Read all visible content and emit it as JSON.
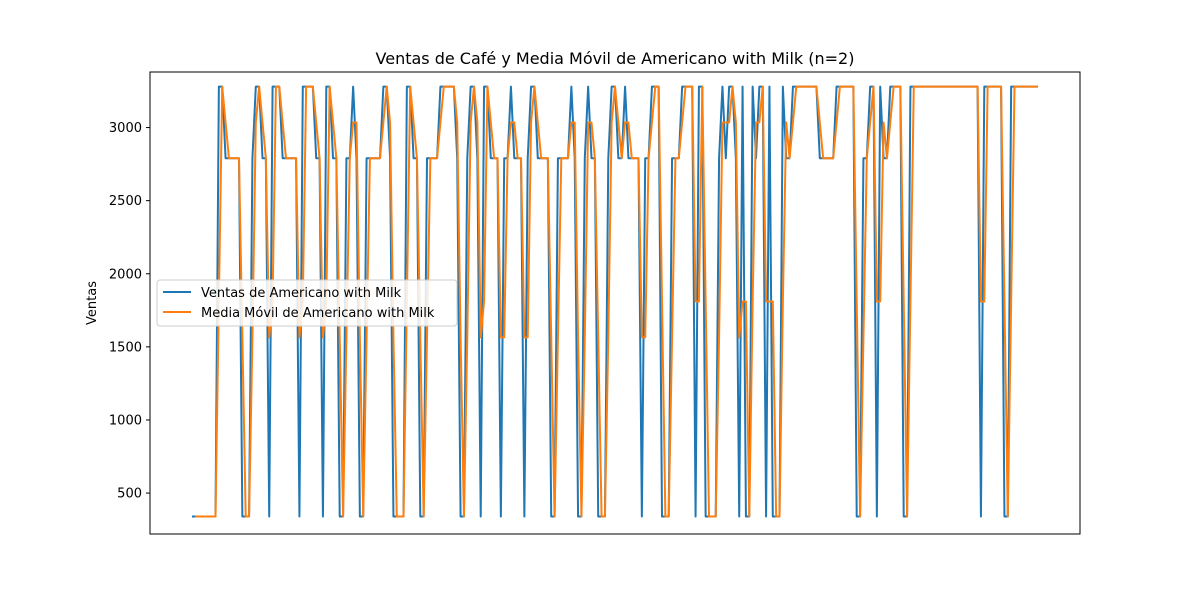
{
  "chart_data": {
    "type": "line",
    "title": "Ventas de Café y Media Móvil de Americano with Milk (n=2)",
    "xlabel": "",
    "ylabel": "Ventas",
    "ylim": [
      220,
      3380
    ],
    "yticks": [
      500,
      1000,
      1500,
      2000,
      2500,
      3000
    ],
    "grid": false,
    "legend_position": "center-left",
    "series": [
      {
        "name": "Ventas de Americano with Milk",
        "color": "#1f77b4",
        "values": [
          340,
          340,
          340,
          340,
          340,
          340,
          340,
          340,
          3280,
          3280,
          2790,
          2790,
          2790,
          2790,
          2790,
          340,
          340,
          340,
          2790,
          3280,
          3280,
          2790,
          2790,
          340,
          3280,
          3280,
          3280,
          2790,
          2790,
          2790,
          2790,
          2790,
          340,
          3280,
          3280,
          3280,
          3280,
          2790,
          2790,
          340,
          3280,
          3280,
          2790,
          2790,
          340,
          340,
          2790,
          2790,
          3280,
          2790,
          340,
          340,
          2790,
          2790,
          2790,
          2790,
          2790,
          3280,
          3280,
          2790,
          340,
          340,
          340,
          340,
          3280,
          3280,
          2790,
          2790,
          340,
          340,
          2790,
          2790,
          2790,
          2790,
          3280,
          3280,
          3280,
          3280,
          3280,
          2790,
          340,
          340,
          2790,
          3280,
          3280,
          2790,
          340,
          3280,
          3280,
          2790,
          2790,
          2790,
          340,
          2790,
          2790,
          3280,
          2790,
          2790,
          2790,
          340,
          2790,
          3280,
          3280,
          2790,
          2790,
          2790,
          2790,
          340,
          340,
          2790,
          2790,
          2790,
          2790,
          3280,
          2790,
          340,
          340,
          2790,
          3280,
          2790,
          2790,
          340,
          340,
          340,
          2790,
          3280,
          3280,
          2790,
          2790,
          3280,
          2790,
          2790,
          2790,
          2790,
          340,
          2790,
          2790,
          3280,
          3280,
          3280,
          340,
          340,
          340,
          2790,
          2790,
          2790,
          3280,
          3280,
          3280,
          3280,
          340,
          3280,
          3280,
          340,
          340,
          340,
          340,
          2790,
          3280,
          2790,
          3280,
          3280,
          2790,
          340,
          3280,
          340,
          340,
          3280,
          2790,
          3280,
          3280,
          340,
          3280,
          340,
          340,
          340,
          3280,
          2790,
          2790,
          3280,
          3280,
          3280,
          3280,
          3280,
          3280,
          3280,
          3280,
          2790,
          2790,
          2790,
          2790,
          2790,
          3280,
          3280,
          3280,
          3280,
          3280,
          3280,
          340,
          340,
          2790,
          2790,
          3280,
          3280,
          340,
          3280,
          2790,
          2790,
          3280,
          3280,
          3280,
          3280,
          340,
          340,
          3280,
          3280,
          3280,
          3280,
          3280,
          3280,
          3280,
          3280,
          3280,
          3280,
          3280,
          3280,
          3280,
          3280,
          3280,
          3280,
          3280,
          3280,
          3280,
          3280,
          3280,
          340,
          3280,
          3280,
          3280,
          3280,
          3280,
          3280,
          340,
          340,
          3280,
          3280,
          3280,
          3280,
          3280,
          3280,
          3280,
          3280,
          3280
        ]
      },
      {
        "name": "Media Móvil de Americano with Milk",
        "color": "#ff7f0e",
        "values": [
          null,
          340,
          340,
          340,
          340,
          340,
          340,
          340,
          1810,
          3280,
          3035,
          2790,
          2790,
          2790,
          2790,
          1565,
          340,
          340,
          1565,
          3035,
          3280,
          3035,
          2790,
          1565,
          1810,
          3280,
          3280,
          3035,
          2790,
          2790,
          2790,
          2790,
          1565,
          1810,
          3280,
          3280,
          3280,
          3035,
          2790,
          1565,
          1810,
          3280,
          3035,
          2790,
          1565,
          340,
          1565,
          2790,
          3035,
          3035,
          1565,
          340,
          1565,
          2790,
          2790,
          2790,
          2790,
          3035,
          3280,
          3035,
          1565,
          340,
          340,
          340,
          1810,
          3280,
          3035,
          2790,
          1565,
          340,
          1565,
          2790,
          2790,
          2790,
          3035,
          3280,
          3280,
          3280,
          3280,
          3035,
          1565,
          340,
          1565,
          3035,
          3280,
          3035,
          1565,
          1810,
          3280,
          3035,
          2790,
          2790,
          1565,
          1565,
          2790,
          3035,
          3035,
          2790,
          2790,
          1565,
          1565,
          3035,
          3280,
          3035,
          2790,
          2790,
          2790,
          1565,
          340,
          1565,
          2790,
          2790,
          2790,
          3035,
          3035,
          1565,
          340,
          1565,
          3035,
          3035,
          2790,
          1565,
          340,
          340,
          1565,
          3035,
          3280,
          3035,
          2790,
          3035,
          3035,
          2790,
          2790,
          2790,
          1565,
          1565,
          2790,
          3035,
          3280,
          3280,
          1810,
          340,
          340,
          1565,
          2790,
          2790,
          3035,
          3280,
          3280,
          3280,
          1810,
          1810,
          3280,
          1810,
          340,
          340,
          340,
          1565,
          3035,
          3035,
          3035,
          3280,
          3035,
          1565,
          1810,
          1810,
          340,
          1810,
          3035,
          3035,
          3280,
          1810,
          1810,
          1810,
          340,
          340,
          1810,
          3035,
          2790,
          3035,
          3280,
          3280,
          3280,
          3280,
          3280,
          3280,
          3280,
          3035,
          2790,
          2790,
          2790,
          2790,
          3035,
          3280,
          3280,
          3280,
          3280,
          3280,
          1810,
          340,
          1565,
          2790,
          3035,
          3280,
          1810,
          1810,
          3035,
          2790,
          3035,
          3280,
          3280,
          3280,
          1810,
          340,
          1810,
          3280,
          3280,
          3280,
          3280,
          3280,
          3280,
          3280,
          3280,
          3280,
          3280,
          3280,
          3280,
          3280,
          3280,
          3280,
          3280,
          3280,
          3280,
          3280,
          3280,
          1810,
          1810,
          3280,
          3280,
          3280,
          3280,
          3280,
          1810,
          340,
          1810,
          3280,
          3280,
          3280,
          3280,
          3280,
          3280,
          3280,
          3280
        ]
      }
    ]
  }
}
